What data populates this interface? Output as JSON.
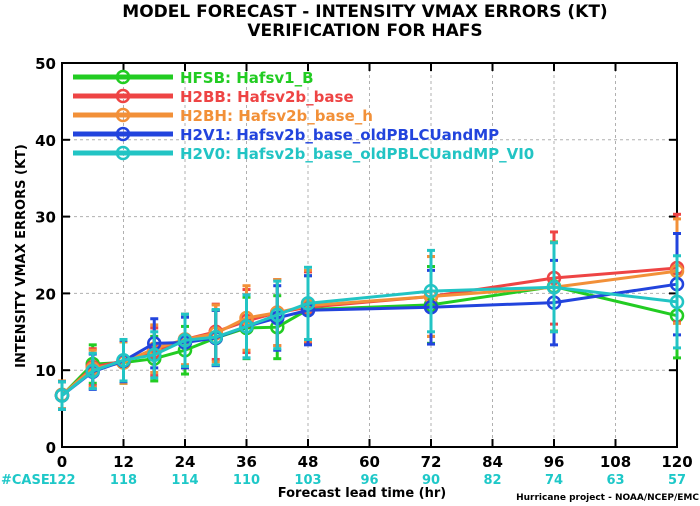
{
  "chart_data": {
    "type": "line",
    "title": "MODEL FORECAST - INTENSITY VMAX ERRORS (KT)",
    "subtitle": "VERIFICATION FOR HAFS",
    "xlabel": "Forecast lead time (hr)",
    "ylabel": "INTENSITY VMAX ERRORS (KT)",
    "xlim": [
      0,
      120
    ],
    "ylim": [
      0,
      50
    ],
    "x_ticks": [
      0,
      12,
      24,
      36,
      48,
      60,
      72,
      84,
      96,
      108,
      120
    ],
    "y_ticks": [
      0,
      10,
      20,
      30,
      40,
      50
    ],
    "grid": true,
    "legend_position": "top-left",
    "case_label": "#CASE",
    "cases": [
      {
        "x": 0,
        "n": "122"
      },
      {
        "x": 12,
        "n": "118"
      },
      {
        "x": 24,
        "n": "114"
      },
      {
        "x": 36,
        "n": "110"
      },
      {
        "x": 48,
        "n": "103"
      },
      {
        "x": 60,
        "n": "96"
      },
      {
        "x": 72,
        "n": "90"
      },
      {
        "x": 84,
        "n": "82"
      },
      {
        "x": 96,
        "n": "74"
      },
      {
        "x": 108,
        "n": "63"
      },
      {
        "x": 120,
        "n": "57"
      }
    ],
    "credit": "Hurricane project - NOAA/NCEP/EMC",
    "series": [
      {
        "name": "HFSB: Hafsv1_B",
        "color": "#22cc22",
        "x": [
          0,
          6,
          12,
          18,
          24,
          30,
          36,
          42,
          48,
          72,
          96,
          120
        ],
        "y": [
          6.7,
          10.8,
          11.0,
          11.5,
          12.6,
          14.2,
          15.5,
          15.6,
          17.9,
          18.5,
          20.9,
          17.1
        ],
        "err": [
          1.8,
          2.5,
          2.7,
          2.9,
          3.1,
          3.6,
          4.0,
          4.1,
          4.4,
          5.0,
          5.8,
          5.5
        ]
      },
      {
        "name": "H2BB: Hafsv2b_base",
        "color": "#ee4444",
        "x": [
          0,
          6,
          12,
          18,
          24,
          30,
          36,
          42,
          48,
          72,
          96,
          120
        ],
        "y": [
          6.7,
          10.4,
          11.2,
          12.4,
          14.0,
          15.0,
          16.4,
          17.5,
          18.2,
          19.6,
          22.0,
          23.3
        ],
        "err": [
          1.8,
          2.4,
          2.7,
          3.1,
          3.3,
          3.6,
          4.1,
          4.3,
          4.6,
          5.2,
          6.0,
          7.0
        ]
      },
      {
        "name": "H2BH: Hafsv2b_base_h",
        "color": "#f29038",
        "x": [
          0,
          6,
          12,
          18,
          24,
          30,
          36,
          42,
          48,
          72,
          96,
          120
        ],
        "y": [
          6.8,
          10.2,
          11.0,
          12.8,
          14.0,
          14.8,
          16.8,
          17.5,
          18.4,
          19.6,
          20.8,
          22.9
        ],
        "err": [
          1.8,
          2.4,
          2.7,
          3.1,
          3.3,
          3.7,
          4.2,
          4.3,
          4.6,
          5.2,
          5.8,
          6.8
        ]
      },
      {
        "name": "H2V1: Hafsv2b_base_oldPBLCUandMP",
        "color": "#2244dd",
        "x": [
          0,
          6,
          12,
          18,
          24,
          30,
          36,
          42,
          48,
          72,
          96,
          120
        ],
        "y": [
          6.7,
          9.8,
          11.2,
          13.5,
          13.6,
          14.2,
          15.7,
          16.8,
          17.8,
          18.2,
          18.8,
          21.2
        ],
        "err": [
          1.8,
          2.3,
          2.7,
          3.2,
          3.3,
          3.6,
          4.1,
          4.2,
          4.5,
          4.8,
          5.5,
          6.6
        ]
      },
      {
        "name": "H2V0: Hafsv2b_base_oldPBLCUandMP_VI0",
        "color": "#22c4c4",
        "x": [
          0,
          6,
          12,
          18,
          24,
          30,
          36,
          42,
          48,
          72,
          96,
          120
        ],
        "y": [
          6.7,
          9.9,
          11.3,
          12.0,
          13.9,
          14.3,
          15.7,
          17.2,
          18.7,
          20.3,
          20.8,
          18.9
        ],
        "err": [
          1.8,
          2.3,
          2.7,
          3.0,
          3.4,
          3.6,
          4.1,
          4.4,
          4.7,
          5.3,
          5.8,
          6.0
        ]
      }
    ]
  }
}
